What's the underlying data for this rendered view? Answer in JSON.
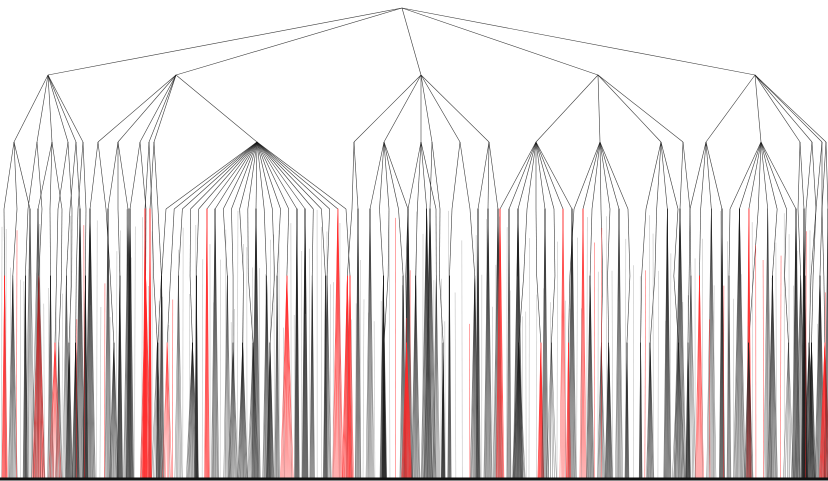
{
  "diagram": {
    "type": "hierarchical-tree",
    "colors": {
      "background": "#ffffff",
      "edge": "#1a1a1a",
      "edge_light": "#7a7a7a",
      "highlight": "#ff2a2a",
      "baseline": "#111111"
    },
    "levels_visible": 7,
    "root": {
      "children": [
        {
          "children": [
            {},
            {},
            {},
            {},
            {},
            {}
          ]
        },
        {
          "children": [
            {},
            {},
            {},
            {},
            {},
            {
              "children": [
                {},
                {},
                {},
                {},
                {},
                {},
                {},
                {},
                {},
                {},
                {},
                {},
                {},
                {}
              ]
            }
          ]
        },
        {
          "children": [
            {},
            {},
            {},
            {},
            {},
            {}
          ]
        },
        {
          "children": [
            {},
            {},
            {},
            {}
          ]
        },
        {
          "children": [
            {},
            {},
            {},
            {},
            {},
            {}
          ]
        }
      ]
    }
  }
}
